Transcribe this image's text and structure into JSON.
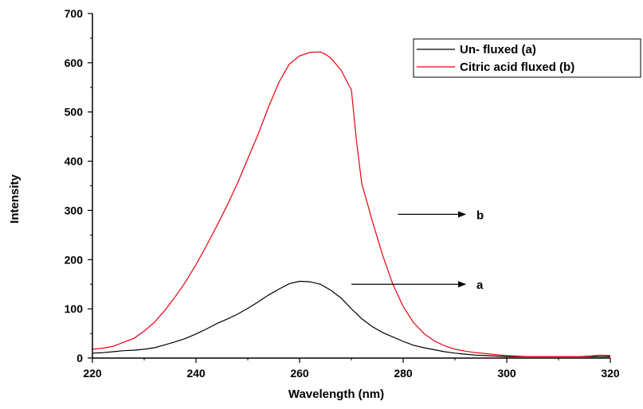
{
  "chart_data": {
    "type": "line",
    "title": "",
    "xlabel": "Wavelength (nm)",
    "ylabel": "Intensity",
    "xlim": [
      220,
      320
    ],
    "ylim": [
      0,
      700
    ],
    "x_ticks": [
      220,
      240,
      260,
      280,
      300,
      320
    ],
    "y_ticks": [
      0,
      100,
      200,
      300,
      400,
      500,
      600,
      700
    ],
    "grid": false,
    "legend_position": "top-right",
    "series": [
      {
        "name": "Un- fluxed (a)",
        "color": "#000000",
        "x": [
          220,
          222,
          224,
          226,
          228,
          230,
          232,
          234,
          236,
          238,
          240,
          242,
          244,
          246,
          248,
          250,
          252,
          254,
          256,
          258,
          260,
          262,
          264,
          266,
          268,
          270,
          272,
          274,
          276,
          278,
          280,
          282,
          284,
          286,
          288,
          290,
          292,
          294,
          296,
          298,
          300,
          305,
          310,
          315,
          320
        ],
        "y": [
          10,
          11,
          13,
          15,
          16,
          18,
          21,
          27,
          33,
          40,
          49,
          59,
          70,
          79,
          89,
          101,
          114,
          128,
          140,
          151,
          156,
          155,
          150,
          138,
          122,
          100,
          80,
          64,
          52,
          43,
          34,
          26,
          21,
          17,
          13,
          10,
          8,
          6,
          5,
          4,
          3,
          3,
          3,
          3,
          3
        ]
      },
      {
        "name": "Citric acid fluxed (b)",
        "color": "#e8000b",
        "x": [
          220,
          222,
          224,
          226,
          228,
          230,
          232,
          234,
          236,
          238,
          240,
          242,
          244,
          246,
          248,
          250,
          252,
          254,
          256,
          258,
          260,
          262,
          264,
          265,
          266,
          268,
          270,
          271,
          272,
          274,
          276,
          278,
          280,
          282,
          284,
          286,
          288,
          290,
          292,
          294,
          296,
          298,
          300,
          302,
          304,
          306,
          308,
          310,
          312,
          314,
          316,
          318,
          320
        ],
        "y": [
          18,
          20,
          24,
          32,
          40,
          55,
          73,
          97,
          125,
          155,
          190,
          228,
          268,
          310,
          355,
          405,
          455,
          510,
          560,
          597,
          614,
          621,
          622,
          617,
          610,
          585,
          545,
          440,
          355,
          280,
          210,
          150,
          105,
          72,
          50,
          35,
          25,
          18,
          14,
          11,
          9,
          7,
          5,
          4,
          3,
          3,
          3,
          3,
          3,
          3,
          4,
          6,
          5
        ]
      }
    ],
    "annotations": [
      {
        "label": "b",
        "x": 279,
        "y": 292,
        "arrow_to_x": 292
      },
      {
        "label": "a",
        "x": 270,
        "y": 150,
        "arrow_to_x": 292
      }
    ]
  }
}
